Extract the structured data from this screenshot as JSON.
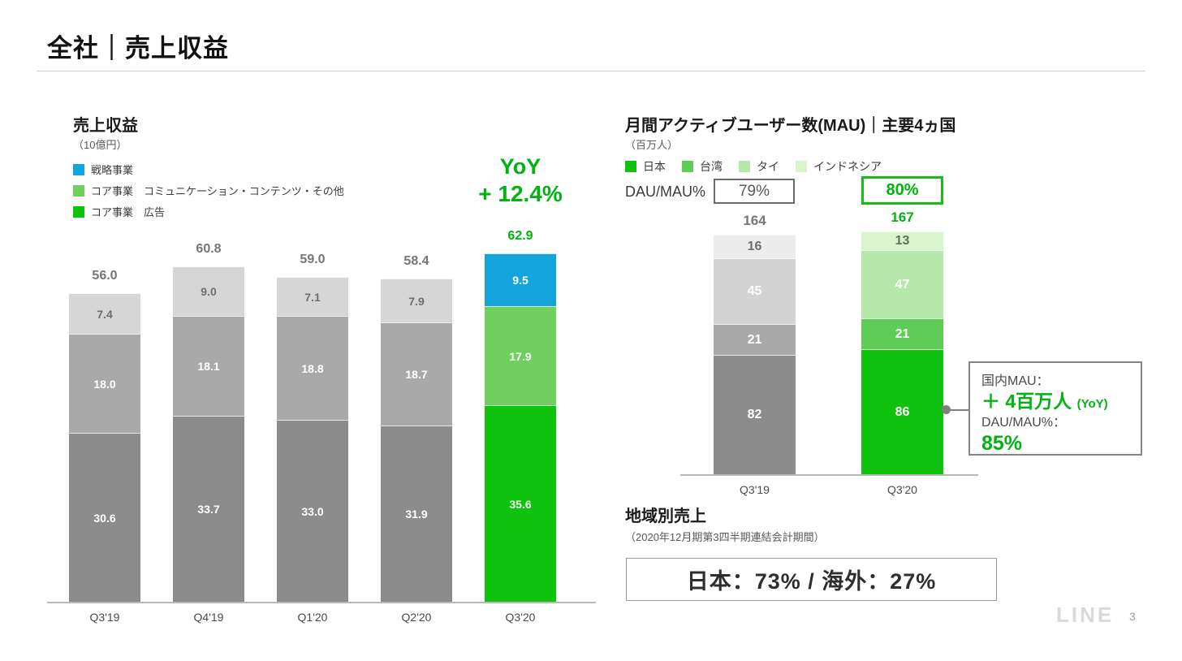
{
  "page": {
    "title": "全社｜売上収益",
    "brand": "LINE",
    "page_number": "3"
  },
  "revenue": {
    "title": "売上収益",
    "unit": "（10億円）",
    "legend": [
      {
        "label": "戦略事業",
        "color": "#14a5dc"
      },
      {
        "label": "コア事業　コミュニケーション・コンテンツ・その他",
        "color": "#6fcf5f"
      },
      {
        "label": "コア事業　広告",
        "color": "#0ec20e"
      }
    ],
    "yoy": {
      "line1": "YoY",
      "line2": "+ 12.4%"
    }
  },
  "mau": {
    "title": "月間アクティブユーザー数(MAU)｜主要4ヵ国",
    "unit": "（百万人）",
    "legend": [
      {
        "label": "日本",
        "color": "#0ec20e"
      },
      {
        "label": "台湾",
        "color": "#5ecd55"
      },
      {
        "label": "タイ",
        "color": "#b7e8ab"
      },
      {
        "label": "インドネシア",
        "color": "#d8f5cd"
      }
    ],
    "dau_mau": {
      "label": "DAU/MAU%",
      "previous": "79%",
      "current": "80%"
    }
  },
  "callout": {
    "label_mau": "国内MAU：",
    "value_mau": "＋ 4百万人",
    "value_mau_suffix": "(YoY)",
    "label_dau": "DAU/MAU%：",
    "value_dau": "85%"
  },
  "region": {
    "title": "地域別売上",
    "subtitle": "（2020年12月期第3四半期連結会計期間）",
    "value": "日本：73% / 海外：27%"
  },
  "chart_data": [
    {
      "type": "bar",
      "stacked": true,
      "title": "売上収益",
      "ylabel": "10億円",
      "categories": [
        "Q3'19",
        "Q4'19",
        "Q1'20",
        "Q2'20",
        "Q3'20"
      ],
      "series": [
        {
          "name": "コア事業 広告",
          "values": [
            30.6,
            33.7,
            33.0,
            31.9,
            35.6
          ],
          "fill_history": "#8c8c8c",
          "fill_highlight": "#0ec20e",
          "label_history": "#ffffff",
          "label_highlight": "#ffffff"
        },
        {
          "name": "コア事業 コミュニケーション・コンテンツ・その他",
          "values": [
            18.0,
            18.1,
            18.8,
            18.7,
            17.9
          ],
          "fill_history": "#a9a9a9",
          "fill_highlight": "#6fcf5f",
          "label_history": "#ffffff",
          "label_highlight": "#ffffff"
        },
        {
          "name": "戦略事業",
          "values": [
            7.4,
            9.0,
            7.1,
            7.9,
            9.5
          ],
          "fill_history": "#d6d6d6",
          "fill_highlight": "#14a5dc",
          "label_history": "#6e6e6e",
          "label_highlight": "#ffffff"
        }
      ],
      "totals": [
        56.0,
        60.8,
        59.0,
        58.4,
        62.9
      ],
      "highlight_index": 4,
      "decimals": 1,
      "annotation": "YoY + 12.4%",
      "legend_position": "top-left",
      "grid": false
    },
    {
      "type": "bar",
      "stacked": true,
      "title": "月間アクティブユーザー数(MAU)｜主要4ヵ国",
      "ylabel": "百万人",
      "categories": [
        "Q3'19",
        "Q3'20"
      ],
      "series": [
        {
          "name": "日本",
          "values": [
            82,
            86
          ],
          "fill_history": "#8c8c8c",
          "fill_highlight": "#0ec20e",
          "label_history": "#ffffff",
          "label_highlight": "#ffffff"
        },
        {
          "name": "台湾",
          "values": [
            21,
            21
          ],
          "fill_history": "#a9a9a9",
          "fill_highlight": "#5ecd55",
          "label_history": "#ffffff",
          "label_highlight": "#ffffff"
        },
        {
          "name": "タイ",
          "values": [
            45,
            47
          ],
          "fill_history": "#d3d3d3",
          "fill_highlight": "#b7e8ab",
          "label_history": "#ffffff",
          "label_highlight": "#ffffff"
        },
        {
          "name": "インドネシア",
          "values": [
            16,
            13
          ],
          "fill_history": "#ececec",
          "fill_highlight": "#d8f5cd",
          "label_history": "#6e6e6e",
          "label_highlight": "#5f7355"
        }
      ],
      "totals": [
        164,
        167
      ],
      "highlight_index": 1,
      "decimals": 0,
      "annotation": "国内MAU：＋4百万人 (YoY)　DAU/MAU%：85%",
      "legend_position": "top-left",
      "grid": false
    }
  ]
}
